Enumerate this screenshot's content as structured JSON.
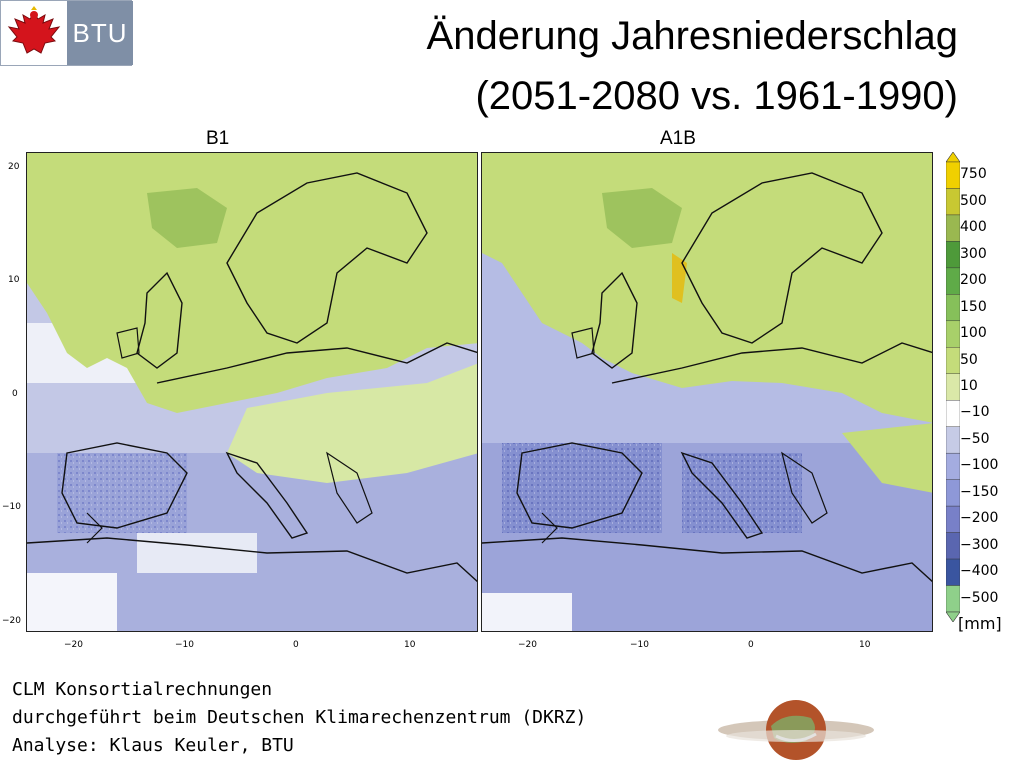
{
  "logo": {
    "text": "BTU",
    "emblem": "brandenburg-eagle-icon"
  },
  "title": {
    "line1": "Änderung Jahresniederschlag",
    "line2": "(2051-2080 vs. 1961-1990)"
  },
  "panels": [
    {
      "label": "B1"
    },
    {
      "label": "A1B"
    }
  ],
  "y_axis_ticks": [
    "20",
    "10",
    "0",
    "−10",
    "−20"
  ],
  "x_axis_ticks": [
    "−20",
    "−10",
    "0",
    "10"
  ],
  "legend": {
    "labels": [
      "750",
      "500",
      "400",
      "300",
      "200",
      "150",
      "100",
      "50",
      "10",
      "−10",
      "−50",
      "−100",
      "−150",
      "−200",
      "−300",
      "−400",
      "−500"
    ],
    "colors": [
      "#f0d000",
      "#c8c832",
      "#9ab850",
      "#4e9a3a",
      "#5fab48",
      "#86c05a",
      "#a8d06a",
      "#c4dc7a",
      "#dae8a8",
      "#ffffff",
      "#c6cbe6",
      "#a4ace0",
      "#8e98d8",
      "#7880c8",
      "#5a66b0",
      "#3a55a0",
      "#8fd08a"
    ],
    "unit": "[mm]"
  },
  "credits": {
    "line1": "CLM Konsortialrechnungen",
    "line2": "durchgeführt beim Deutschen Klimarechenzentrum (DKRZ)",
    "line3": "Analyse: Klaus Keuler, BTU"
  }
}
